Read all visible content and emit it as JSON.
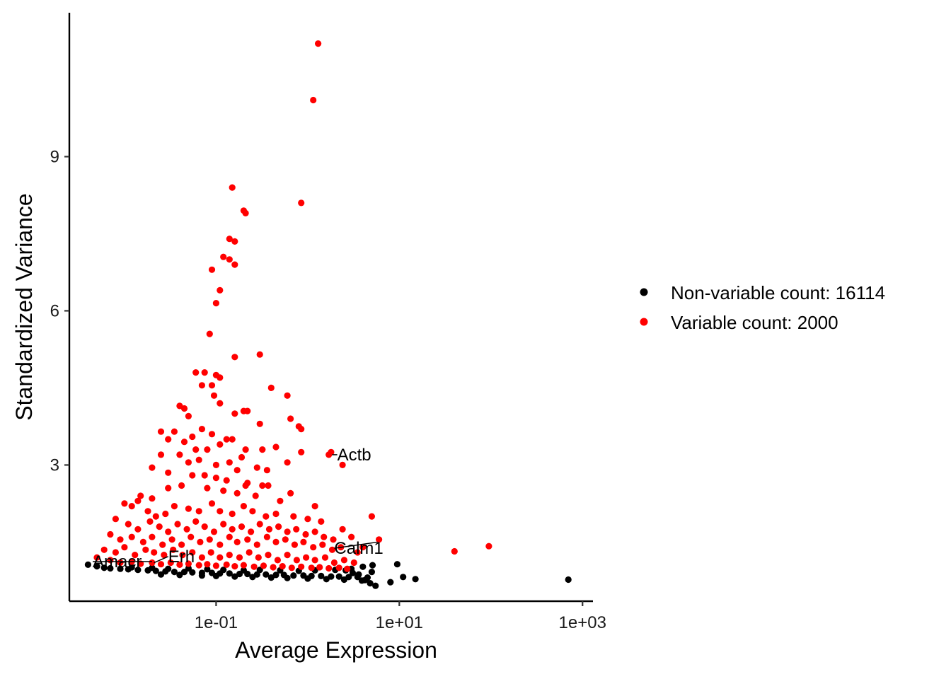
{
  "chart_data": {
    "type": "scatter",
    "title": "",
    "xlabel": "Average Expression",
    "ylabel": "Standardized Variance",
    "x_scale": "log10",
    "xlim": [
      0.0025,
      1300
    ],
    "ylim": [
      0.35,
      11.8
    ],
    "x_ticks": [
      {
        "value": 0.1,
        "label": "1e-01"
      },
      {
        "value": 10,
        "label": "1e+01"
      },
      {
        "value": 1000,
        "label": "1e+03"
      }
    ],
    "y_ticks": [
      {
        "value": 3,
        "label": "3"
      },
      {
        "value": 6,
        "label": "6"
      },
      {
        "value": 9,
        "label": "9"
      }
    ],
    "grid": false,
    "legend_position": "right",
    "series": [
      {
        "name": "Non-variable count: 16114",
        "color": "#000000",
        "points": [
          [
            0.004,
            1.06
          ],
          [
            0.005,
            1.03
          ],
          [
            0.006,
            1.0
          ],
          [
            0.007,
            0.99
          ],
          [
            0.009,
            0.98
          ],
          [
            0.011,
            0.97
          ],
          [
            0.014,
            0.96
          ],
          [
            0.018,
            0.95
          ],
          [
            0.022,
            0.94
          ],
          [
            0.028,
            0.93
          ],
          [
            0.035,
            0.92
          ],
          [
            0.045,
            0.92
          ],
          [
            0.055,
            0.91
          ],
          [
            0.07,
            0.9
          ],
          [
            0.09,
            0.9
          ],
          [
            0.11,
            0.89
          ],
          [
            0.14,
            0.89
          ],
          [
            0.18,
            0.88
          ],
          [
            0.22,
            0.88
          ],
          [
            0.28,
            0.87
          ],
          [
            0.35,
            0.87
          ],
          [
            0.45,
            0.86
          ],
          [
            0.55,
            0.86
          ],
          [
            0.7,
            0.85
          ],
          [
            0.9,
            0.85
          ],
          [
            1.1,
            0.84
          ],
          [
            1.4,
            0.84
          ],
          [
            1.8,
            0.83
          ],
          [
            2.2,
            0.83
          ],
          [
            2.8,
            0.82
          ],
          [
            3.5,
            0.82
          ],
          [
            4.5,
            0.81
          ],
          [
            0.012,
            1.01
          ],
          [
            0.02,
            1.0
          ],
          [
            0.03,
            0.98
          ],
          [
            0.05,
            0.99
          ],
          [
            0.08,
            0.97
          ],
          [
            0.12,
            0.96
          ],
          [
            0.2,
            0.95
          ],
          [
            0.3,
            0.96
          ],
          [
            0.5,
            0.95
          ],
          [
            0.8,
            0.94
          ],
          [
            1.2,
            0.95
          ],
          [
            2.0,
            0.96
          ],
          [
            3.0,
            0.98
          ],
          [
            4.0,
            1.02
          ],
          [
            0.025,
            0.87
          ],
          [
            0.04,
            0.86
          ],
          [
            0.07,
            0.85
          ],
          [
            0.1,
            0.84
          ],
          [
            0.16,
            0.83
          ],
          [
            0.25,
            0.82
          ],
          [
            0.4,
            0.81
          ],
          [
            0.6,
            0.8
          ],
          [
            1.0,
            0.79
          ],
          [
            1.6,
            0.78
          ],
          [
            2.5,
            0.77
          ],
          [
            4.2,
            0.76
          ],
          [
            2.6,
            0.95
          ],
          [
            3.1,
            0.9
          ],
          [
            3.6,
            0.87
          ],
          [
            3.9,
            0.75
          ],
          [
            4.8,
            0.7
          ],
          [
            5.5,
            0.65
          ],
          [
            5.0,
            0.92
          ],
          [
            5.1,
            1.05
          ],
          [
            8.0,
            0.72
          ],
          [
            11.0,
            0.82
          ],
          [
            15.0,
            0.78
          ],
          [
            9.5,
            1.07
          ],
          [
            700,
            0.77
          ]
        ]
      },
      {
        "name": "Variable count: 2000",
        "color": "#ff0000",
        "points": [
          [
            1.3,
            11.2
          ],
          [
            1.15,
            10.1
          ],
          [
            0.15,
            8.4
          ],
          [
            0.85,
            8.1
          ],
          [
            0.2,
            7.95
          ],
          [
            0.21,
            7.9
          ],
          [
            0.14,
            7.4
          ],
          [
            0.16,
            7.35
          ],
          [
            0.12,
            7.05
          ],
          [
            0.14,
            7.0
          ],
          [
            0.16,
            6.9
          ],
          [
            0.09,
            6.8
          ],
          [
            0.11,
            6.4
          ],
          [
            0.1,
            6.15
          ],
          [
            0.085,
            5.55
          ],
          [
            0.3,
            5.15
          ],
          [
            0.16,
            5.1
          ],
          [
            0.06,
            4.8
          ],
          [
            0.075,
            4.8
          ],
          [
            0.1,
            4.75
          ],
          [
            0.11,
            4.7
          ],
          [
            0.07,
            4.55
          ],
          [
            0.09,
            4.55
          ],
          [
            0.4,
            4.5
          ],
          [
            0.095,
            4.35
          ],
          [
            0.6,
            4.35
          ],
          [
            0.11,
            4.2
          ],
          [
            0.04,
            4.15
          ],
          [
            0.045,
            4.1
          ],
          [
            0.16,
            4.0
          ],
          [
            0.2,
            4.05
          ],
          [
            0.22,
            4.05
          ],
          [
            0.05,
            3.95
          ],
          [
            0.65,
            3.9
          ],
          [
            0.8,
            3.75
          ],
          [
            0.85,
            3.7
          ],
          [
            0.025,
            3.65
          ],
          [
            0.035,
            3.65
          ],
          [
            0.3,
            3.8
          ],
          [
            0.07,
            3.7
          ],
          [
            0.055,
            3.55
          ],
          [
            0.09,
            3.6
          ],
          [
            0.13,
            3.5
          ],
          [
            0.15,
            3.5
          ],
          [
            0.03,
            3.5
          ],
          [
            0.045,
            3.45
          ],
          [
            0.11,
            3.4
          ],
          [
            0.21,
            3.3
          ],
          [
            0.32,
            3.3
          ],
          [
            0.45,
            3.35
          ],
          [
            0.06,
            3.3
          ],
          [
            0.08,
            3.3
          ],
          [
            0.025,
            3.2
          ],
          [
            0.04,
            3.2
          ],
          [
            0.19,
            3.15
          ],
          [
            0.02,
            2.95
          ],
          [
            0.05,
            3.05
          ],
          [
            0.065,
            3.1
          ],
          [
            0.1,
            3.0
          ],
          [
            0.14,
            3.05
          ],
          [
            0.6,
            3.05
          ],
          [
            0.28,
            2.95
          ],
          [
            0.17,
            2.9
          ],
          [
            0.36,
            2.9
          ],
          [
            0.85,
            3.25
          ],
          [
            1.7,
            3.2
          ],
          [
            1.8,
            3.25
          ],
          [
            2.4,
            3.0
          ],
          [
            0.03,
            2.85
          ],
          [
            0.055,
            2.8
          ],
          [
            0.075,
            2.8
          ],
          [
            0.1,
            2.75
          ],
          [
            0.13,
            2.7
          ],
          [
            0.21,
            2.6
          ],
          [
            0.22,
            2.65
          ],
          [
            0.32,
            2.6
          ],
          [
            0.37,
            2.6
          ],
          [
            0.042,
            2.6
          ],
          [
            0.03,
            2.55
          ],
          [
            0.015,
            2.4
          ],
          [
            0.02,
            2.35
          ],
          [
            0.08,
            2.55
          ],
          [
            0.12,
            2.5
          ],
          [
            0.17,
            2.45
          ],
          [
            0.27,
            2.4
          ],
          [
            0.5,
            2.3
          ],
          [
            0.65,
            2.45
          ],
          [
            1.2,
            2.2
          ],
          [
            5.0,
            2.0
          ],
          [
            6.0,
            1.55
          ],
          [
            0.01,
            2.25
          ],
          [
            0.012,
            2.2
          ],
          [
            0.014,
            2.3
          ],
          [
            0.018,
            2.1
          ],
          [
            0.022,
            2.0
          ],
          [
            0.028,
            2.05
          ],
          [
            0.035,
            2.2
          ],
          [
            0.05,
            2.15
          ],
          [
            0.065,
            2.1
          ],
          [
            0.09,
            2.25
          ],
          [
            0.11,
            2.1
          ],
          [
            0.15,
            2.05
          ],
          [
            0.2,
            2.2
          ],
          [
            0.25,
            2.1
          ],
          [
            0.35,
            2.0
          ],
          [
            0.45,
            2.05
          ],
          [
            0.7,
            2.0
          ],
          [
            1.0,
            1.95
          ],
          [
            1.4,
            1.9
          ],
          [
            0.008,
            1.95
          ],
          [
            0.011,
            1.85
          ],
          [
            0.014,
            1.75
          ],
          [
            0.019,
            1.9
          ],
          [
            0.024,
            1.8
          ],
          [
            0.03,
            1.7
          ],
          [
            0.038,
            1.85
          ],
          [
            0.048,
            1.75
          ],
          [
            0.06,
            1.9
          ],
          [
            0.075,
            1.8
          ],
          [
            0.095,
            1.7
          ],
          [
            0.12,
            1.85
          ],
          [
            0.15,
            1.75
          ],
          [
            0.19,
            1.8
          ],
          [
            0.24,
            1.7
          ],
          [
            0.3,
            1.85
          ],
          [
            0.38,
            1.75
          ],
          [
            0.48,
            1.8
          ],
          [
            0.6,
            1.7
          ],
          [
            0.75,
            1.75
          ],
          [
            0.95,
            1.65
          ],
          [
            1.2,
            1.7
          ],
          [
            1.5,
            1.6
          ],
          [
            1.9,
            1.55
          ],
          [
            2.4,
            1.75
          ],
          [
            3.0,
            1.6
          ],
          [
            0.007,
            1.65
          ],
          [
            0.009,
            1.55
          ],
          [
            0.012,
            1.6
          ],
          [
            0.016,
            1.5
          ],
          [
            0.02,
            1.6
          ],
          [
            0.026,
            1.45
          ],
          [
            0.033,
            1.55
          ],
          [
            0.042,
            1.45
          ],
          [
            0.053,
            1.6
          ],
          [
            0.067,
            1.5
          ],
          [
            0.085,
            1.55
          ],
          [
            0.11,
            1.45
          ],
          [
            0.14,
            1.6
          ],
          [
            0.17,
            1.5
          ],
          [
            0.22,
            1.55
          ],
          [
            0.28,
            1.45
          ],
          [
            0.36,
            1.6
          ],
          [
            0.45,
            1.5
          ],
          [
            0.57,
            1.55
          ],
          [
            0.72,
            1.45
          ],
          [
            0.9,
            1.5
          ],
          [
            1.15,
            1.4
          ],
          [
            1.45,
            1.45
          ],
          [
            1.85,
            1.35
          ],
          [
            2.3,
            1.4
          ],
          [
            3.5,
            1.3
          ],
          [
            4.0,
            1.4
          ],
          [
            0.006,
            1.35
          ],
          [
            0.008,
            1.3
          ],
          [
            0.01,
            1.4
          ],
          [
            0.013,
            1.25
          ],
          [
            0.017,
            1.35
          ],
          [
            0.021,
            1.3
          ],
          [
            0.027,
            1.25
          ],
          [
            0.034,
            1.35
          ],
          [
            0.043,
            1.25
          ],
          [
            0.055,
            1.3
          ],
          [
            0.07,
            1.2
          ],
          [
            0.088,
            1.3
          ],
          [
            0.11,
            1.2
          ],
          [
            0.14,
            1.25
          ],
          [
            0.18,
            1.2
          ],
          [
            0.23,
            1.3
          ],
          [
            0.29,
            1.2
          ],
          [
            0.37,
            1.25
          ],
          [
            0.47,
            1.15
          ],
          [
            0.6,
            1.25
          ],
          [
            0.76,
            1.15
          ],
          [
            0.96,
            1.2
          ],
          [
            1.2,
            1.15
          ],
          [
            1.55,
            1.2
          ],
          [
            1.95,
            1.1
          ],
          [
            2.5,
            1.15
          ],
          [
            3.2,
            1.1
          ],
          [
            40,
            1.32
          ],
          [
            95,
            1.42
          ],
          [
            0.005,
            1.2
          ],
          [
            0.007,
            1.15
          ],
          [
            0.009,
            1.1
          ],
          [
            0.012,
            1.12
          ],
          [
            0.015,
            1.08
          ],
          [
            0.02,
            1.1
          ],
          [
            0.025,
            1.07
          ],
          [
            0.032,
            1.1
          ],
          [
            0.04,
            1.06
          ],
          [
            0.05,
            1.08
          ],
          [
            0.065,
            1.05
          ],
          [
            0.08,
            1.07
          ],
          [
            0.1,
            1.04
          ],
          [
            0.13,
            1.06
          ],
          [
            0.16,
            1.03
          ],
          [
            0.2,
            1.05
          ],
          [
            0.26,
            1.02
          ],
          [
            0.33,
            1.04
          ],
          [
            0.42,
            1.01
          ],
          [
            0.53,
            1.03
          ],
          [
            0.67,
            1.0
          ],
          [
            0.85,
            1.02
          ],
          [
            1.1,
            1.0
          ],
          [
            1.35,
            1.01
          ],
          [
            1.7,
            0.99
          ],
          [
            2.2,
            1.0
          ],
          [
            2.7,
            0.98
          ]
        ]
      }
    ],
    "annotations": [
      {
        "label": "Actb",
        "x": 1.85,
        "y": 3.2,
        "text_x": 2.1,
        "text_y": 3.2
      },
      {
        "label": "Calm1",
        "x": 5.8,
        "y": 1.5,
        "text_x": 1.95,
        "text_y": 1.38
      },
      {
        "label": "Amacr",
        "x": 0.02,
        "y": 1.12,
        "text_x": 0.0045,
        "text_y": 1.12
      },
      {
        "label": "Erh",
        "x": 0.021,
        "y": 1.1,
        "text_x": 0.03,
        "text_y": 1.22
      }
    ]
  }
}
